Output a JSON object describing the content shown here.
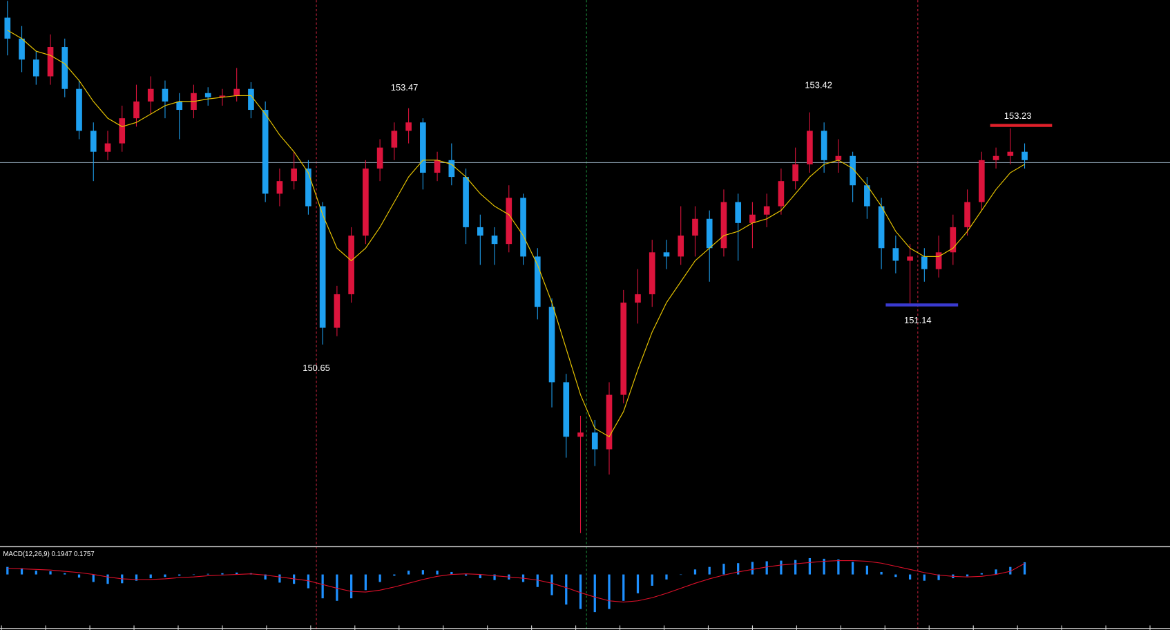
{
  "chart_data": [
    {
      "type": "candlestick",
      "up_color": "#dc143c",
      "down_color": "#1ea0f0",
      "ma_color": "#e6c300",
      "hline_color": "#8aa0b0",
      "ylim": [
        148.26,
        154.76
      ],
      "hline": 152.82,
      "annotations": [
        "153.47",
        "153.42",
        "153.23",
        "150.65",
        "151.14"
      ],
      "candles": [
        [
          154.55,
          154.75,
          154.1,
          154.3
        ],
        [
          154.3,
          154.45,
          153.9,
          154.05
        ],
        [
          154.05,
          154.15,
          153.75,
          153.85
        ],
        [
          153.85,
          154.35,
          153.75,
          154.2
        ],
        [
          154.2,
          154.3,
          153.6,
          153.7
        ],
        [
          153.7,
          153.8,
          153.1,
          153.2
        ],
        [
          153.2,
          153.3,
          152.6,
          152.95
        ],
        [
          152.95,
          153.2,
          152.85,
          153.05
        ],
        [
          153.05,
          153.5,
          152.95,
          153.35
        ],
        [
          153.35,
          153.75,
          153.25,
          153.55
        ],
        [
          153.55,
          153.85,
          153.4,
          153.7
        ],
        [
          153.7,
          153.8,
          153.35,
          153.55
        ],
        [
          153.55,
          153.65,
          153.1,
          153.45
        ],
        [
          153.45,
          153.75,
          153.35,
          153.65
        ],
        [
          153.65,
          153.72,
          153.5,
          153.6
        ],
        [
          153.6,
          153.7,
          153.5,
          153.62
        ],
        [
          153.62,
          153.95,
          153.55,
          153.7
        ],
        [
          153.7,
          153.78,
          153.35,
          153.45
        ],
        [
          153.45,
          153.55,
          152.35,
          152.45
        ],
        [
          152.45,
          152.75,
          152.3,
          152.6
        ],
        [
          152.6,
          152.95,
          152.5,
          152.75
        ],
        [
          152.75,
          152.85,
          152.2,
          152.3
        ],
        [
          152.3,
          152.35,
          150.65,
          150.85
        ],
        [
          150.85,
          151.35,
          150.75,
          151.25
        ],
        [
          151.25,
          152.05,
          151.15,
          151.95
        ],
        [
          151.95,
          152.85,
          151.85,
          152.75
        ],
        [
          152.75,
          153.1,
          152.6,
          153.0
        ],
        [
          153.0,
          153.3,
          152.85,
          153.2
        ],
        [
          153.2,
          153.47,
          153.05,
          153.3
        ],
        [
          153.3,
          153.35,
          152.5,
          152.7
        ],
        [
          152.7,
          152.95,
          152.6,
          152.85
        ],
        [
          152.85,
          153.05,
          152.55,
          152.65
        ],
        [
          152.65,
          152.75,
          151.85,
          152.05
        ],
        [
          152.05,
          152.2,
          151.6,
          151.95
        ],
        [
          151.95,
          152.05,
          151.6,
          151.85
        ],
        [
          151.85,
          152.55,
          151.75,
          152.4
        ],
        [
          152.4,
          152.45,
          151.6,
          151.7
        ],
        [
          151.7,
          151.8,
          150.95,
          151.1
        ],
        [
          151.1,
          151.2,
          149.9,
          150.2
        ],
        [
          150.2,
          150.3,
          149.3,
          149.55
        ],
        [
          149.55,
          149.8,
          148.4,
          149.6
        ],
        [
          149.6,
          149.75,
          149.2,
          149.4
        ],
        [
          149.4,
          150.2,
          149.1,
          150.05
        ],
        [
          150.05,
          151.3,
          149.95,
          151.15
        ],
        [
          151.15,
          151.55,
          150.9,
          151.25
        ],
        [
          151.25,
          151.9,
          151.1,
          151.75
        ],
        [
          151.75,
          151.9,
          151.55,
          151.7
        ],
        [
          151.7,
          152.3,
          151.6,
          151.95
        ],
        [
          151.95,
          152.3,
          151.7,
          152.15
        ],
        [
          152.15,
          152.25,
          151.4,
          151.8
        ],
        [
          151.8,
          152.5,
          151.7,
          152.35
        ],
        [
          152.35,
          152.45,
          151.65,
          152.1
        ],
        [
          152.1,
          152.35,
          151.8,
          152.2
        ],
        [
          152.2,
          152.45,
          152.05,
          152.3
        ],
        [
          152.3,
          152.75,
          152.2,
          152.6
        ],
        [
          152.6,
          153.0,
          152.5,
          152.8
        ],
        [
          152.8,
          153.42,
          152.7,
          153.2
        ],
        [
          153.2,
          153.3,
          152.7,
          152.85
        ],
        [
          152.85,
          153.1,
          152.7,
          152.9
        ],
        [
          152.9,
          152.95,
          152.35,
          152.55
        ],
        [
          152.55,
          152.65,
          152.15,
          152.3
        ],
        [
          152.3,
          152.4,
          151.55,
          151.8
        ],
        [
          151.8,
          151.95,
          151.5,
          151.65
        ],
        [
          151.65,
          151.85,
          151.14,
          151.7
        ],
        [
          151.7,
          151.8,
          151.4,
          151.55
        ],
        [
          151.55,
          151.95,
          151.45,
          151.75
        ],
        [
          151.75,
          152.2,
          151.6,
          152.05
        ],
        [
          152.05,
          152.5,
          151.95,
          152.35
        ],
        [
          152.35,
          152.95,
          152.25,
          152.85
        ],
        [
          152.85,
          153.0,
          152.75,
          152.9
        ],
        [
          152.9,
          153.23,
          152.8,
          152.95
        ],
        [
          152.95,
          153.05,
          152.75,
          152.85
        ]
      ],
      "ma": [
        154.4,
        154.3,
        154.15,
        154.1,
        154.0,
        153.8,
        153.55,
        153.35,
        153.25,
        153.3,
        153.4,
        153.5,
        153.55,
        153.55,
        153.58,
        153.6,
        153.62,
        153.62,
        153.4,
        153.15,
        152.95,
        152.7,
        152.2,
        151.8,
        151.65,
        151.8,
        152.05,
        152.35,
        152.65,
        152.85,
        152.85,
        152.8,
        152.65,
        152.45,
        152.3,
        152.2,
        151.95,
        151.6,
        151.15,
        150.6,
        150.05,
        149.65,
        149.55,
        149.85,
        150.35,
        150.8,
        151.15,
        151.4,
        151.65,
        151.8,
        151.95,
        152.0,
        152.1,
        152.15,
        152.25,
        152.45,
        152.65,
        152.8,
        152.85,
        152.75,
        152.55,
        152.3,
        152.0,
        151.8,
        151.7,
        151.7,
        151.8,
        152.0,
        152.25,
        152.5,
        152.7,
        152.8
      ]
    },
    {
      "type": "macd",
      "title": "MACD(12,26,9) 0.1947 0.1757",
      "hist_color": "#1e90ff",
      "signal_color": "#e0102a",
      "ylim": [
        -0.86,
        0.4
      ],
      "hist": [
        0.12,
        0.1,
        0.06,
        0.05,
        0.02,
        -0.05,
        -0.12,
        -0.15,
        -0.14,
        -0.1,
        -0.06,
        -0.04,
        -0.02,
        0.0,
        0.01,
        0.02,
        0.03,
        0.02,
        -0.08,
        -0.13,
        -0.15,
        -0.22,
        -0.38,
        -0.42,
        -0.38,
        -0.25,
        -0.12,
        -0.02,
        0.06,
        0.07,
        0.06,
        0.04,
        -0.02,
        -0.06,
        -0.09,
        -0.08,
        -0.12,
        -0.2,
        -0.33,
        -0.48,
        -0.55,
        -0.6,
        -0.55,
        -0.42,
        -0.3,
        -0.18,
        -0.08,
        0.0,
        0.08,
        0.12,
        0.17,
        0.18,
        0.2,
        0.21,
        0.22,
        0.23,
        0.26,
        0.25,
        0.24,
        0.2,
        0.14,
        0.04,
        -0.04,
        -0.08,
        -0.1,
        -0.09,
        -0.06,
        -0.03,
        0.02,
        0.08,
        0.12,
        0.1947
      ],
      "signal": [
        0.1,
        0.09,
        0.08,
        0.07,
        0.05,
        0.03,
        0.0,
        -0.04,
        -0.07,
        -0.08,
        -0.08,
        -0.07,
        -0.05,
        -0.04,
        -0.02,
        -0.01,
        0.0,
        0.01,
        -0.01,
        -0.04,
        -0.07,
        -0.1,
        -0.16,
        -0.22,
        -0.27,
        -0.28,
        -0.25,
        -0.2,
        -0.14,
        -0.08,
        -0.03,
        0.0,
        0.01,
        0.0,
        -0.02,
        -0.04,
        -0.06,
        -0.09,
        -0.14,
        -0.21,
        -0.29,
        -0.36,
        -0.42,
        -0.44,
        -0.42,
        -0.37,
        -0.3,
        -0.22,
        -0.14,
        -0.07,
        -0.01,
        0.04,
        0.08,
        0.12,
        0.15,
        0.17,
        0.19,
        0.21,
        0.22,
        0.22,
        0.21,
        0.18,
        0.13,
        0.08,
        0.03,
        -0.01,
        -0.03,
        -0.04,
        -0.03,
        0.0,
        0.05,
        0.1757
      ]
    }
  ]
}
